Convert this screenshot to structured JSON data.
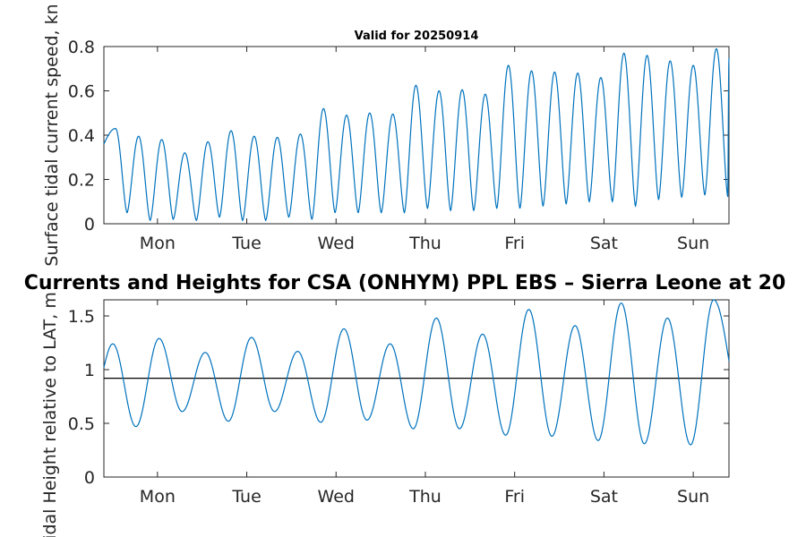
{
  "figure": {
    "title": "Currents and Heights for CSA (ONHYM) PPL EBS  – Sierra Leone at 20"
  },
  "chart_data": [
    {
      "type": "line",
      "title": "Valid for 20250914",
      "xlabel": "",
      "ylabel": "Surface tidal current speed, kn",
      "ylim": [
        0,
        0.8
      ],
      "yticks": [
        "0",
        "0.2",
        "0.4",
        "0.6",
        "0.8"
      ],
      "xlim": [
        0,
        7
      ],
      "xticks": [
        {
          "x": 0.6,
          "label": "Mon"
        },
        {
          "x": 1.6,
          "label": "Tue"
        },
        {
          "x": 2.6,
          "label": "Wed"
        },
        {
          "x": 3.6,
          "label": "Thu"
        },
        {
          "x": 4.6,
          "label": "Fri"
        },
        {
          "x": 5.6,
          "label": "Sat"
        },
        {
          "x": 6.6,
          "label": "Sun"
        }
      ],
      "grid": false,
      "color": "#0072bd",
      "peaks": [
        0.43,
        0.395,
        0.38,
        0.32,
        0.37,
        0.42,
        0.395,
        0.39,
        0.405,
        0.52,
        0.49,
        0.5,
        0.495,
        0.625,
        0.6,
        0.605,
        0.585,
        0.715,
        0.69,
        0.685,
        0.68,
        0.66,
        0.77,
        0.76,
        0.735,
        0.715,
        0.79
      ],
      "troughs": [
        0.05,
        0.015,
        0.02,
        0.015,
        0.03,
        0.015,
        0.015,
        0.03,
        0.02,
        0.05,
        0.05,
        0.05,
        0.05,
        0.07,
        0.06,
        0.06,
        0.07,
        0.07,
        0.08,
        0.09,
        0.1,
        0.1,
        0.08,
        0.11,
        0.12,
        0.13,
        0.12
      ],
      "start_value": 0.36,
      "end_value": 0.75
    },
    {
      "type": "line",
      "title": "",
      "xlabel": "",
      "ylabel": "Tidal Height relative to LAT, m",
      "ylim": [
        0,
        1.65
      ],
      "yticks": [
        "0",
        "0.5",
        "1",
        "1.5"
      ],
      "xlim": [
        0,
        7
      ],
      "xticks": [
        {
          "x": 0.6,
          "label": "Mon"
        },
        {
          "x": 1.6,
          "label": "Tue"
        },
        {
          "x": 2.6,
          "label": "Wed"
        },
        {
          "x": 3.6,
          "label": "Thu"
        },
        {
          "x": 4.6,
          "label": "Fri"
        },
        {
          "x": 5.6,
          "label": "Sat"
        },
        {
          "x": 6.6,
          "label": "Sun"
        }
      ],
      "grid": false,
      "color": "#0072bd",
      "mean_level": 0.92,
      "highs": [
        1.24,
        1.29,
        1.16,
        1.3,
        1.17,
        1.38,
        1.24,
        1.48,
        1.33,
        1.56,
        1.41,
        1.62,
        1.48,
        1.65
      ],
      "lows": [
        0.47,
        0.61,
        0.52,
        0.61,
        0.51,
        0.53,
        0.45,
        0.45,
        0.39,
        0.38,
        0.34,
        0.31,
        0.3
      ],
      "start_value": 1.02,
      "end_value": 1.08
    }
  ]
}
